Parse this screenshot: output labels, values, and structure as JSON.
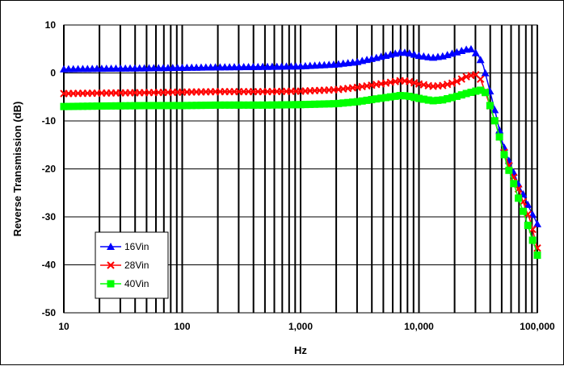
{
  "chart_data": {
    "type": "line",
    "title": "",
    "xlabel": "Hz",
    "ylabel": "Reverse Transmission (dB)",
    "xscale": "log",
    "xlim": [
      10,
      100000
    ],
    "ylim": [
      -50,
      10
    ],
    "x_ticks": [
      {
        "value": 10,
        "label": "10"
      },
      {
        "value": 100,
        "label": "100"
      },
      {
        "value": 1000,
        "label": "1,000"
      },
      {
        "value": 10000,
        "label": "10,000"
      },
      {
        "value": 100000,
        "label": "100,000"
      }
    ],
    "y_ticks": [
      {
        "value": 10,
        "label": "10"
      },
      {
        "value": 0,
        "label": "0"
      },
      {
        "value": -10,
        "label": "-10"
      },
      {
        "value": -20,
        "label": "-20"
      },
      {
        "value": -30,
        "label": "-30"
      },
      {
        "value": -40,
        "label": "-40"
      },
      {
        "value": -50,
        "label": "-50"
      }
    ],
    "grid": true,
    "legend_position": "bottom-left",
    "series": [
      {
        "name": "16Vin",
        "color": "#0000ff",
        "marker": "triangle",
        "points": [
          [
            10,
            0.8
          ],
          [
            20,
            0.9
          ],
          [
            50,
            1.0
          ],
          [
            100,
            1.1
          ],
          [
            200,
            1.2
          ],
          [
            500,
            1.3
          ],
          [
            1000,
            1.4
          ],
          [
            2000,
            1.8
          ],
          [
            3000,
            2.3
          ],
          [
            5000,
            3.5
          ],
          [
            7000,
            4.3
          ],
          [
            8000,
            4.2
          ],
          [
            10000,
            3.6
          ],
          [
            13000,
            3.2
          ],
          [
            16000,
            3.5
          ],
          [
            20000,
            4.2
          ],
          [
            25000,
            4.9
          ],
          [
            28000,
            5.0
          ],
          [
            32000,
            3.5
          ],
          [
            35000,
            1.5
          ],
          [
            40000,
            -4
          ],
          [
            45000,
            -9
          ],
          [
            50000,
            -14
          ],
          [
            55000,
            -17
          ],
          [
            60000,
            -19.5
          ],
          [
            65000,
            -21.5
          ],
          [
            70000,
            -23.5
          ],
          [
            75000,
            -25
          ],
          [
            80000,
            -26.5
          ],
          [
            85000,
            -28
          ],
          [
            90000,
            -29.3
          ],
          [
            95000,
            -30.3
          ],
          [
            100000,
            -31.5
          ]
        ]
      },
      {
        "name": "28Vin",
        "color": "#ff0000",
        "marker": "x",
        "points": [
          [
            10,
            -4.3
          ],
          [
            20,
            -4.2
          ],
          [
            50,
            -4.1
          ],
          [
            100,
            -4.0
          ],
          [
            200,
            -3.9
          ],
          [
            500,
            -3.9
          ],
          [
            1000,
            -3.8
          ],
          [
            2000,
            -3.5
          ],
          [
            3000,
            -3.0
          ],
          [
            5000,
            -2.2
          ],
          [
            7000,
            -1.6
          ],
          [
            8000,
            -1.7
          ],
          [
            10000,
            -2.3
          ],
          [
            13000,
            -2.8
          ],
          [
            16000,
            -2.6
          ],
          [
            20000,
            -2.0
          ],
          [
            25000,
            -0.8
          ],
          [
            30000,
            -0.3
          ],
          [
            33000,
            -1.2
          ],
          [
            37000,
            -4.5
          ],
          [
            40000,
            -7
          ],
          [
            45000,
            -11
          ],
          [
            50000,
            -15
          ],
          [
            55000,
            -18
          ],
          [
            60000,
            -20.5
          ],
          [
            65000,
            -22.5
          ],
          [
            70000,
            -24.5
          ],
          [
            75000,
            -26.5
          ],
          [
            80000,
            -28.5
          ],
          [
            85000,
            -30
          ],
          [
            90000,
            -32
          ],
          [
            95000,
            -34.5
          ],
          [
            100000,
            -36.5
          ]
        ]
      },
      {
        "name": "40Vin",
        "color": "#00ff00",
        "marker": "square",
        "points": [
          [
            10,
            -7.0
          ],
          [
            20,
            -6.9
          ],
          [
            50,
            -6.8
          ],
          [
            100,
            -6.8
          ],
          [
            200,
            -6.7
          ],
          [
            500,
            -6.7
          ],
          [
            1000,
            -6.6
          ],
          [
            2000,
            -6.4
          ],
          [
            3000,
            -6.0
          ],
          [
            5000,
            -5.2
          ],
          [
            7000,
            -4.7
          ],
          [
            8000,
            -4.8
          ],
          [
            10000,
            -5.3
          ],
          [
            13000,
            -5.8
          ],
          [
            16000,
            -5.6
          ],
          [
            20000,
            -5.0
          ],
          [
            25000,
            -4.3
          ],
          [
            30000,
            -3.8
          ],
          [
            35000,
            -3.5
          ],
          [
            38000,
            -4.8
          ],
          [
            40000,
            -7
          ],
          [
            45000,
            -11
          ],
          [
            50000,
            -15
          ],
          [
            55000,
            -19
          ],
          [
            60000,
            -21.5
          ],
          [
            65000,
            -24
          ],
          [
            70000,
            -26.5
          ],
          [
            75000,
            -28.5
          ],
          [
            80000,
            -30.5
          ],
          [
            85000,
            -32.5
          ],
          [
            90000,
            -34.5
          ],
          [
            95000,
            -36
          ],
          [
            100000,
            -38
          ]
        ]
      }
    ]
  }
}
